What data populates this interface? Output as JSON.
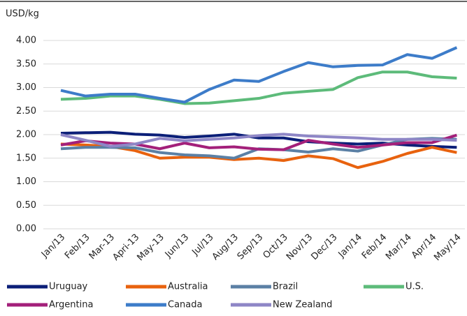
{
  "chart_data": {
    "type": "line",
    "y_label": "USD/kg",
    "categories": [
      "Jan/13",
      "Feb/13",
      "Mar-13",
      "Apri-13",
      "May-13",
      "Jun/13",
      "Jul/13",
      "Aug/13",
      "Sep/13",
      "Oct/13",
      "Nov/13",
      "Dec/13",
      "Jan/14",
      "Feb/14",
      "Mar/14",
      "Apr/14",
      "May/14"
    ],
    "series": [
      {
        "name": "Uruguay",
        "color": "#0b1f78",
        "values": [
          2.03,
          2.04,
          2.05,
          2.01,
          1.99,
          1.94,
          1.97,
          2.01,
          1.93,
          1.93,
          1.85,
          1.82,
          1.8,
          1.82,
          1.78,
          1.75,
          1.73
        ]
      },
      {
        "name": "Australia",
        "color": "#e8620e",
        "values": [
          1.8,
          1.78,
          1.75,
          1.66,
          1.5,
          1.52,
          1.52,
          1.47,
          1.5,
          1.45,
          1.55,
          1.49,
          1.3,
          1.43,
          1.6,
          1.73,
          1.62
        ]
      },
      {
        "name": "Brazil",
        "color": "#5b80a5",
        "values": [
          1.7,
          1.73,
          1.73,
          1.72,
          1.62,
          1.57,
          1.55,
          1.5,
          1.7,
          1.68,
          1.63,
          1.7,
          1.65,
          1.78,
          1.9,
          1.92,
          1.9
        ]
      },
      {
        "name": "U.S.",
        "color": "#5dbb7a",
        "values": [
          2.75,
          2.77,
          2.82,
          2.82,
          2.75,
          2.66,
          2.67,
          2.72,
          2.77,
          2.88,
          2.92,
          2.96,
          3.21,
          3.33,
          3.33,
          3.23,
          3.2
        ]
      },
      {
        "name": "Argentina",
        "color": "#a3207a",
        "values": [
          1.78,
          1.87,
          1.82,
          1.8,
          1.7,
          1.82,
          1.72,
          1.74,
          1.69,
          1.68,
          1.88,
          1.8,
          1.73,
          1.78,
          1.83,
          1.83,
          1.99
        ]
      },
      {
        "name": "Canada",
        "color": "#3d7cc9",
        "values": [
          2.94,
          2.82,
          2.86,
          2.86,
          2.77,
          2.69,
          2.96,
          3.16,
          3.13,
          3.34,
          3.53,
          3.44,
          3.47,
          3.48,
          3.7,
          3.62,
          3.85
        ]
      },
      {
        "name": "New Zealand",
        "color": "#8e86c6",
        "values": [
          2.0,
          1.88,
          1.75,
          1.8,
          1.92,
          1.87,
          1.9,
          1.93,
          1.98,
          2.01,
          1.97,
          1.95,
          1.93,
          1.9,
          1.9,
          1.9,
          1.88
        ]
      }
    ],
    "ylim": [
      0,
      4
    ],
    "yticks": [
      {
        "value": 0,
        "label": "0.00"
      },
      {
        "value": 0.5,
        "label": "0.50"
      },
      {
        "value": 1,
        "label": "1.00"
      },
      {
        "value": 1.5,
        "label": "1.50"
      },
      {
        "value": 2,
        "label": "2.00"
      },
      {
        "value": 2.5,
        "label": "2.50"
      },
      {
        "value": 3,
        "label": "3.00"
      },
      {
        "value": 3.5,
        "label": "3.50"
      },
      {
        "value": 4,
        "label": "4.00"
      }
    ],
    "grid": true
  }
}
